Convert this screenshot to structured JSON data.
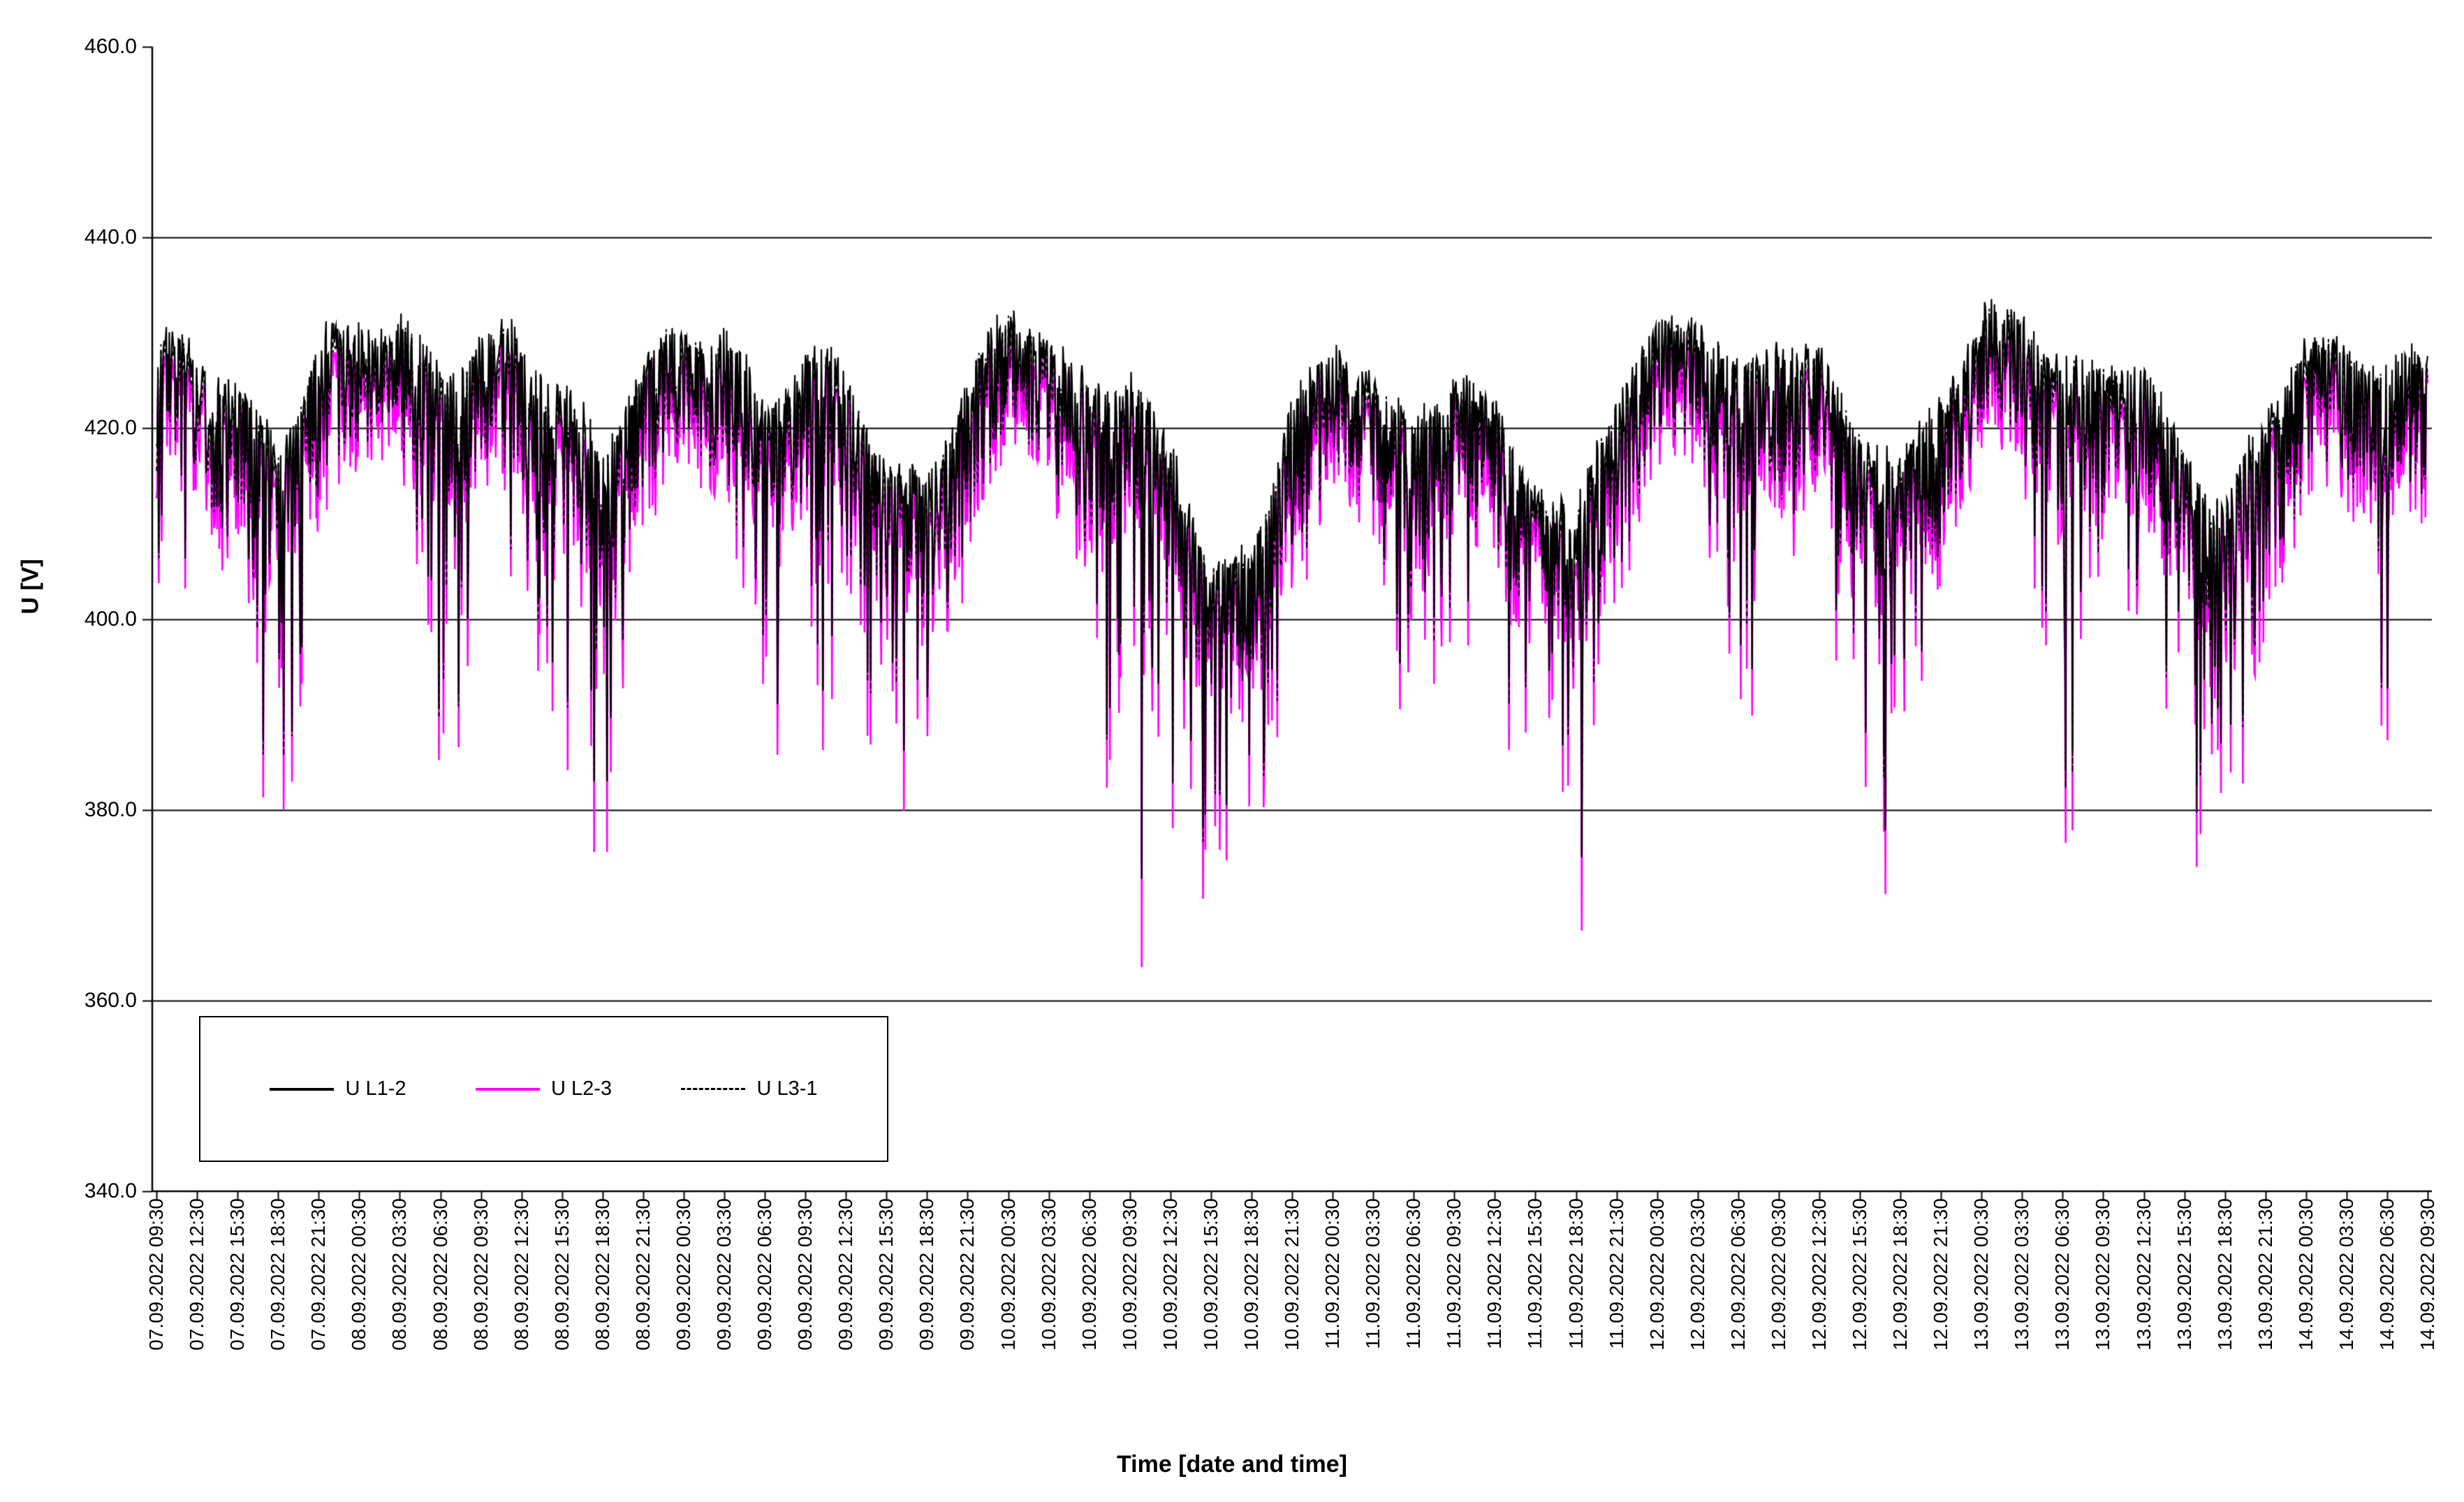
{
  "chart_data": {
    "type": "line",
    "title": "",
    "xlabel": "Time [date and time]",
    "ylabel": "U [V]",
    "ylim": [
      340,
      460
    ],
    "ytick_step": 20,
    "grid": "horizontal",
    "grid_color": "#000000",
    "background_color": "#FFFFFF",
    "legend_position": "inside-bottom-left",
    "y_tick_labels": [
      "460.0",
      "440.0",
      "420.0",
      "400.0",
      "380.0",
      "360.0",
      "340.0"
    ],
    "x_tick_labels": [
      "07.09.2022 09:30",
      "07.09.2022 12:30",
      "07.09.2022 15:30",
      "07.09.2022 18:30",
      "07.09.2022 21:30",
      "08.09.2022 00:30",
      "08.09.2022 03:30",
      "08.09.2022 06:30",
      "08.09.2022 09:30",
      "08.09.2022 12:30",
      "08.09.2022 15:30",
      "08.09.2022 18:30",
      "08.09.2022 21:30",
      "09.09.2022 00:30",
      "09.09.2022 03:30",
      "09.09.2022 06:30",
      "09.09.2022 09:30",
      "09.09.2022 12:30",
      "09.09.2022 15:30",
      "09.09.2022 18:30",
      "09.09.2022 21:30",
      "10.09.2022 00:30",
      "10.09.2022 03:30",
      "10.09.2022 06:30",
      "10.09.2022 09:30",
      "10.09.2022 12:30",
      "10.09.2022 15:30",
      "10.09.2022 18:30",
      "10.09.2022 21:30",
      "11.09.2022 00:30",
      "11.09.2022 03:30",
      "11.09.2022 06:30",
      "11.09.2022 09:30",
      "11.09.2022 12:30",
      "11.09.2022 15:30",
      "11.09.2022 18:30",
      "11.09.2022 21:30",
      "12.09.2022 00:30",
      "12.09.2022 03:30",
      "12.09.2022 06:30",
      "12.09.2022 09:30",
      "12.09.2022 12:30",
      "12.09.2022 15:30",
      "12.09.2022 18:30",
      "12.09.2022 21:30",
      "13.09.2022 00:30",
      "13.09.2022 03:30",
      "13.09.2022 06:30",
      "13.09.2022 09:30",
      "13.09.2022 12:30",
      "13.09.2022 15:30",
      "13.09.2022 18:30",
      "13.09.2022 21:30",
      "14.09.2022 00:30",
      "14.09.2022 03:30",
      "14.09.2022 06:30",
      "14.09.2022 09:30"
    ],
    "series": [
      {
        "name": "U L1-2",
        "color": "#000000",
        "line_style": "solid",
        "level_offset_v": 0,
        "sag_scale": 1.0
      },
      {
        "name": "U L2-3",
        "color": "#FF00FF",
        "line_style": "solid",
        "level_offset_v": -2.5,
        "sag_scale": 1.13
      },
      {
        "name": "U L3-1",
        "color": "#000000",
        "line_style": "dashed",
        "level_offset_v": -1,
        "sag_scale": 1.0
      }
    ],
    "envelope_upper_v": [
      432,
      431,
      428,
      420,
      433,
      433,
      435,
      428,
      433,
      432,
      428,
      420,
      431,
      433,
      434,
      424,
      432,
      428,
      420,
      416,
      430,
      434,
      434,
      426,
      430,
      420,
      410,
      408,
      428,
      430,
      430,
      422,
      430,
      424,
      418,
      414,
      428,
      432,
      436,
      428,
      433,
      430,
      424,
      418,
      428,
      434,
      436,
      428,
      431,
      428,
      422,
      414,
      426,
      431,
      433,
      428,
      432
    ],
    "sag_depth_v": [
      24,
      20,
      25,
      40,
      15,
      10,
      10,
      45,
      20,
      22,
      30,
      45,
      15,
      10,
      12,
      28,
      46,
      25,
      35,
      40,
      15,
      10,
      10,
      30,
      60,
      50,
      46,
      45,
      20,
      10,
      12,
      35,
      20,
      25,
      30,
      45,
      18,
      10,
      10,
      45,
      15,
      20,
      28,
      45,
      18,
      10,
      10,
      55,
      18,
      22,
      30,
      42,
      20,
      12,
      12,
      35,
      15
    ]
  }
}
